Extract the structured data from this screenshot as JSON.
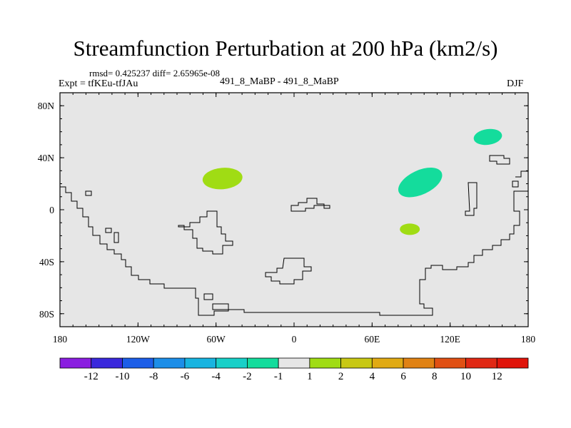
{
  "chart_data": {
    "type": "contour-map",
    "title": "Streamfunction Perturbation at 200 hPa (km2/s)",
    "left_title": "Expt = tfKEu-tfJAu",
    "center_title": "491_8_MaBP - 491_8_MaBP",
    "right_title": "DJF",
    "stats": "rmsd= 0.425237 diff= 2.65965e-08",
    "x_ticks": [
      "180",
      "120W",
      "60W",
      "0",
      "60E",
      "120E",
      "180"
    ],
    "y_ticks": [
      "80N",
      "40N",
      "0",
      "40S",
      "80S"
    ],
    "x_range": [
      -180,
      180
    ],
    "y_range": [
      -90,
      90
    ],
    "grid": false,
    "background_color": "#e6e6e6",
    "colorbar": {
      "labels": [
        "-12",
        "-10",
        "-8",
        "-6",
        "-4",
        "-2",
        "-1",
        "1",
        "2",
        "4",
        "6",
        "8",
        "10",
        "12"
      ],
      "colors": [
        "#8a1ee0",
        "#3a28dc",
        "#1c5ee8",
        "#1c8ee8",
        "#18b4e0",
        "#18d0c8",
        "#14dc9c",
        "#e6e6e6",
        "#a0dc14",
        "#c8c814",
        "#e0aa14",
        "#e08214",
        "#e05014",
        "#e02814",
        "#e0140a"
      ]
    },
    "anomalies": [
      {
        "lon": -55,
        "lat": 24,
        "range": "1 to 2",
        "color": "#a0dc14"
      },
      {
        "lon": 97,
        "lat": 21,
        "range": "-2 to -1",
        "color": "#14dc9c"
      },
      {
        "lon": 149,
        "lat": 56,
        "range": "-2 to -1",
        "color": "#14dc9c"
      },
      {
        "lon": 89,
        "lat": -15,
        "range": "1 to 2",
        "color": "#a0dc14"
      }
    ]
  }
}
